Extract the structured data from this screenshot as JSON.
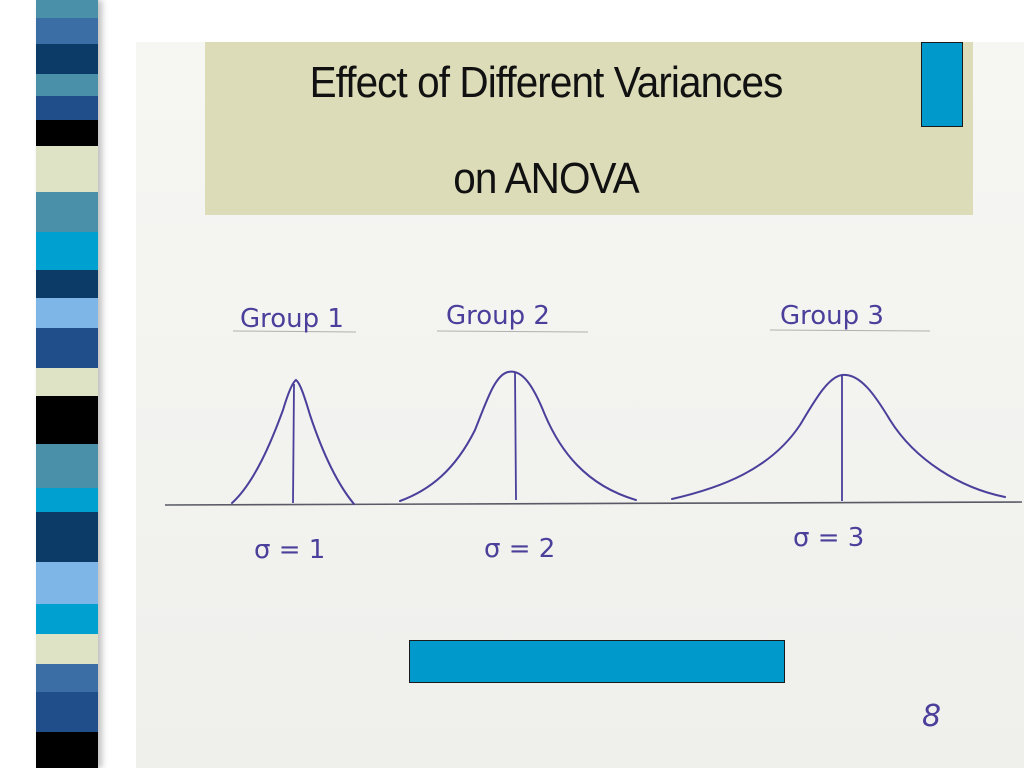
{
  "slide": {
    "title_line1": "Effect of Different Variances",
    "title_line2": "on ANOVA",
    "page_number": "8"
  },
  "groups": [
    {
      "label": "Group 1",
      "sigma_label": "σ = 1"
    },
    {
      "label": "Group 2",
      "sigma_label": "σ = 2"
    },
    {
      "label": "Group 3",
      "sigma_label": "σ = 3"
    }
  ],
  "colors": {
    "title_background": "#dcdcb9",
    "accent": "#0099cc",
    "ink": "#4a3f9a"
  },
  "stripe_colors": [
    "#0b3b66",
    "#4a90a8",
    "#3a6ea5",
    "#1f4e8a",
    "#000000",
    "#dde3c4",
    "#00a0d0",
    "#7fb6e8",
    "#2a2a2a"
  ]
}
